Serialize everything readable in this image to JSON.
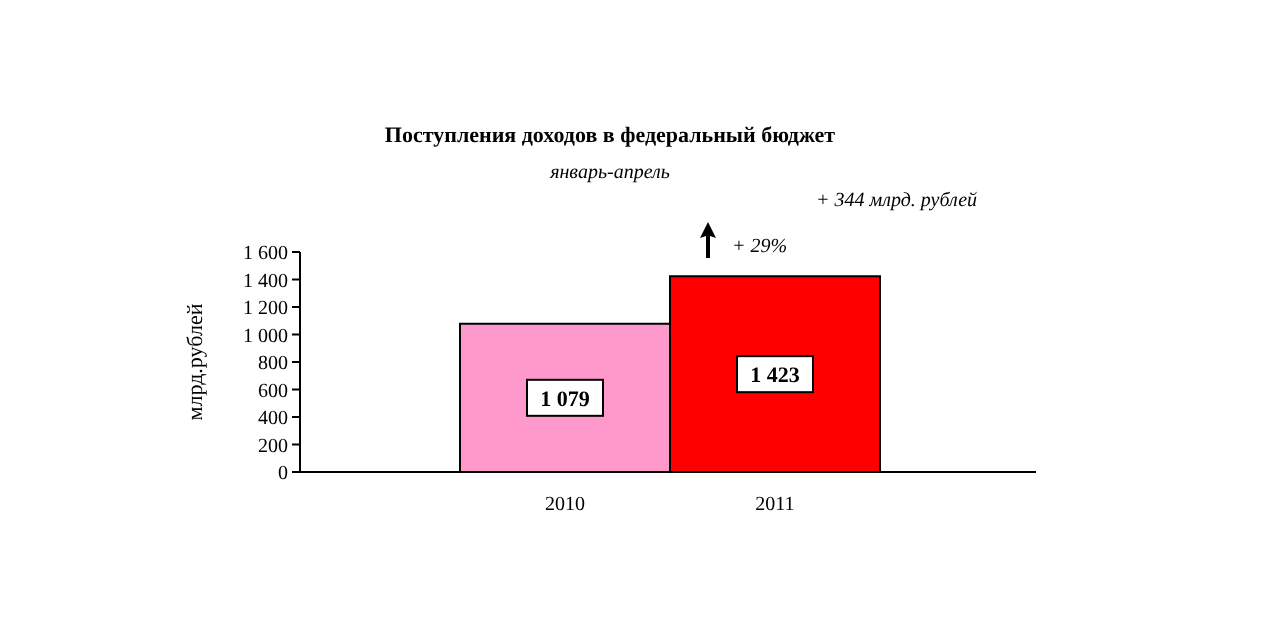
{
  "chart_data": {
    "type": "bar",
    "title": "Поступления доходов в федеральный бюджет",
    "subtitle": "январь-апрель",
    "ylabel": "млрд.рублей",
    "annotations": [
      "+ 344 млрд. рублей",
      "+ 29%"
    ],
    "categories": [
      "2010",
      "2011"
    ],
    "values": [
      1079,
      1423
    ],
    "colors": [
      "#ff99cc",
      "#ff0000"
    ],
    "value_labels": [
      "1 079",
      "1 423"
    ],
    "ylim": [
      0,
      1600
    ],
    "yticks": [
      0,
      200,
      400,
      600,
      800,
      {
        "value": 1000,
        "label": "1 000"
      },
      {
        "value": 1200,
        "label": "1 200"
      },
      {
        "value": 1400,
        "label": "1 400"
      },
      {
        "value": 1600,
        "label": "1 600"
      }
    ],
    "grid": false,
    "legend": false
  }
}
